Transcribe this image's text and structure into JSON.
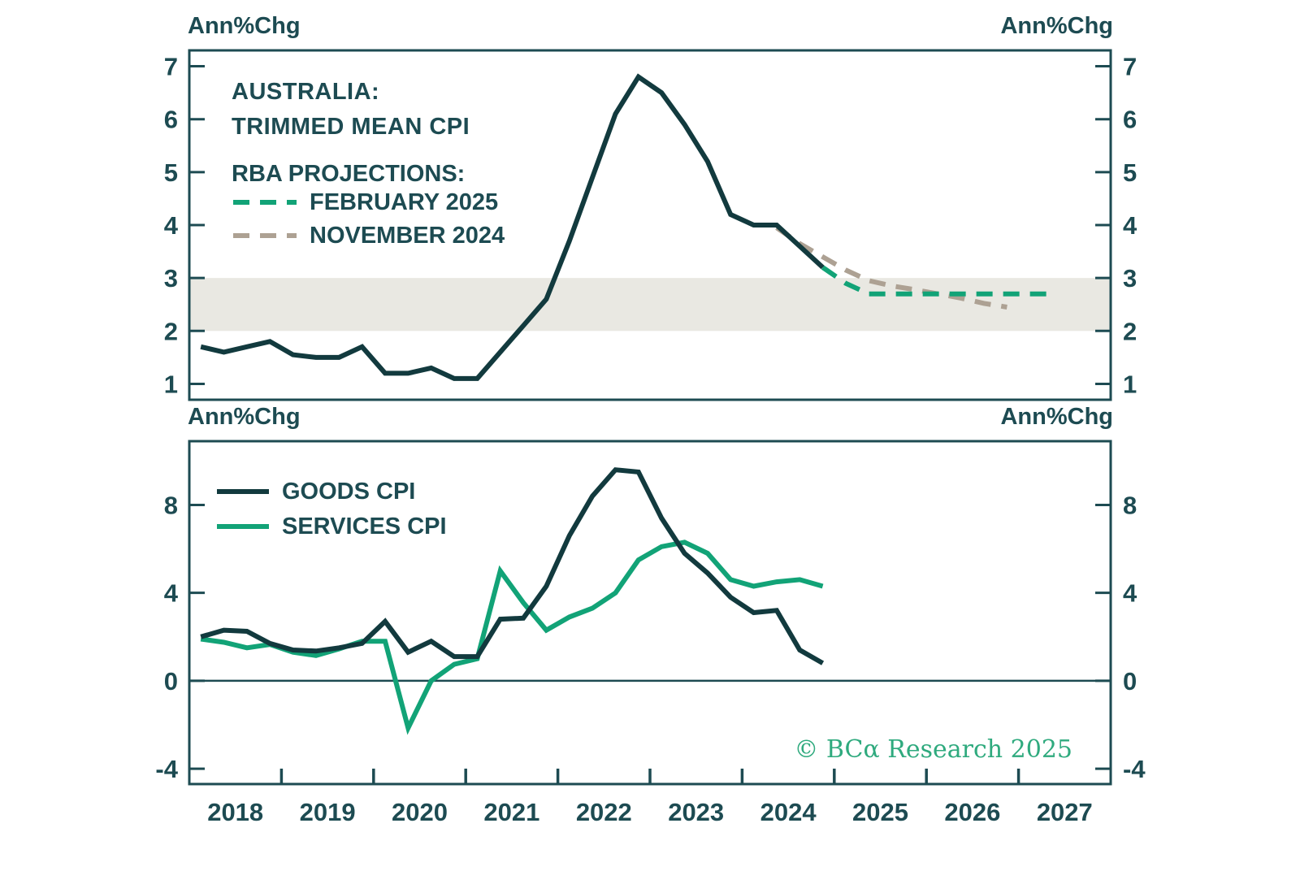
{
  "copyright": "© BCα Research 2025",
  "colors": {
    "ink": "#1d4b52",
    "dark_line": "#123a3e",
    "green_line": "#12a377",
    "gray_line": "#ada193",
    "band": "#e9e8e2",
    "copyright_green": "#2faa7e"
  },
  "chart_data": [
    {
      "type": "line",
      "panel": "top",
      "title_lines": [
        "AUSTRALIA:",
        "TRIMMED MEAN CPI"
      ],
      "ylabel_left": "Ann%Chg",
      "ylabel_right": "Ann%Chg",
      "ylim": [
        0.7,
        7.3
      ],
      "yticks": [
        1,
        2,
        3,
        4,
        5,
        6,
        7
      ],
      "xlim": [
        2018,
        2028
      ],
      "grid": "off",
      "target_band": {
        "from": 2,
        "to": 3
      },
      "legend_heading": "RBA PROJECTIONS:",
      "series": [
        {
          "name": "TRIMMED MEAN CPI",
          "style": "solid",
          "color": "#123a3e",
          "x": [
            2018.125,
            2018.375,
            2018.625,
            2018.875,
            2019.125,
            2019.375,
            2019.625,
            2019.875,
            2020.125,
            2020.375,
            2020.625,
            2020.875,
            2021.125,
            2021.375,
            2021.625,
            2021.875,
            2022.125,
            2022.375,
            2022.625,
            2022.875,
            2023.125,
            2023.375,
            2023.625,
            2023.875,
            2024.125,
            2024.375,
            2024.625,
            2024.875
          ],
          "values": [
            1.7,
            1.6,
            1.7,
            1.8,
            1.55,
            1.5,
            1.5,
            1.7,
            1.2,
            1.2,
            1.3,
            1.1,
            1.1,
            1.6,
            2.1,
            2.6,
            3.7,
            4.9,
            6.1,
            6.8,
            6.5,
            5.9,
            5.2,
            4.2,
            4.0,
            4.0,
            3.6,
            3.2
          ]
        },
        {
          "name": "FEBRUARY 2025",
          "style": "dashed",
          "color": "#12a377",
          "x": [
            2024.875,
            2025.125,
            2025.375,
            2025.625,
            2025.875,
            2026.125,
            2026.375,
            2026.625,
            2026.875,
            2027.125,
            2027.375
          ],
          "values": [
            3.2,
            2.9,
            2.7,
            2.7,
            2.7,
            2.7,
            2.7,
            2.7,
            2.7,
            2.7,
            2.7
          ]
        },
        {
          "name": "NOVEMBER 2024",
          "style": "dashed",
          "color": "#ada193",
          "x": [
            2024.375,
            2024.625,
            2024.875,
            2025.125,
            2025.375,
            2025.625,
            2025.875,
            2026.125,
            2026.375,
            2026.625,
            2026.875
          ],
          "values": [
            3.95,
            3.65,
            3.4,
            3.15,
            2.95,
            2.85,
            2.78,
            2.7,
            2.62,
            2.52,
            2.45
          ]
        }
      ]
    },
    {
      "type": "line",
      "panel": "bottom",
      "ylabel_left": "Ann%Chg",
      "ylabel_right": "Ann%Chg",
      "ylim": [
        -4.7,
        10.9
      ],
      "yticks": [
        -4,
        0,
        4,
        8
      ],
      "xlim": [
        2018,
        2028
      ],
      "grid": "off",
      "zero_line": true,
      "x_tick_labels": [
        "2018",
        "2019",
        "2020",
        "2021",
        "2022",
        "2023",
        "2024",
        "2025",
        "2026",
        "2027"
      ],
      "series": [
        {
          "name": "GOODS CPI",
          "style": "solid",
          "color": "#123a3e",
          "x": [
            2018.125,
            2018.375,
            2018.625,
            2018.875,
            2019.125,
            2019.375,
            2019.625,
            2019.875,
            2020.125,
            2020.375,
            2020.625,
            2020.875,
            2021.125,
            2021.375,
            2021.625,
            2021.875,
            2022.125,
            2022.375,
            2022.625,
            2022.875,
            2023.125,
            2023.375,
            2023.625,
            2023.875,
            2024.125,
            2024.375,
            2024.625,
            2024.875
          ],
          "values": [
            2.0,
            2.3,
            2.25,
            1.7,
            1.4,
            1.35,
            1.5,
            1.7,
            2.7,
            1.3,
            1.8,
            1.1,
            1.1,
            2.8,
            2.85,
            4.3,
            6.6,
            8.4,
            9.6,
            9.5,
            7.4,
            5.8,
            4.9,
            3.8,
            3.1,
            3.2,
            1.4,
            0.8
          ]
        },
        {
          "name": "SERVICES CPI",
          "style": "solid",
          "color": "#12a377",
          "x": [
            2018.125,
            2018.375,
            2018.625,
            2018.875,
            2019.125,
            2019.375,
            2019.625,
            2019.875,
            2020.125,
            2020.375,
            2020.625,
            2020.875,
            2021.125,
            2021.375,
            2021.625,
            2021.875,
            2022.125,
            2022.375,
            2022.625,
            2022.875,
            2023.125,
            2023.375,
            2023.625,
            2023.875,
            2024.125,
            2024.375,
            2024.625,
            2024.875
          ],
          "values": [
            1.9,
            1.75,
            1.5,
            1.65,
            1.3,
            1.15,
            1.45,
            1.8,
            1.8,
            -2.15,
            0.0,
            0.75,
            1.0,
            5.0,
            3.55,
            2.3,
            2.9,
            3.3,
            4.0,
            5.5,
            6.1,
            6.3,
            5.8,
            4.6,
            4.3,
            4.5,
            4.6,
            4.3
          ]
        }
      ]
    }
  ]
}
